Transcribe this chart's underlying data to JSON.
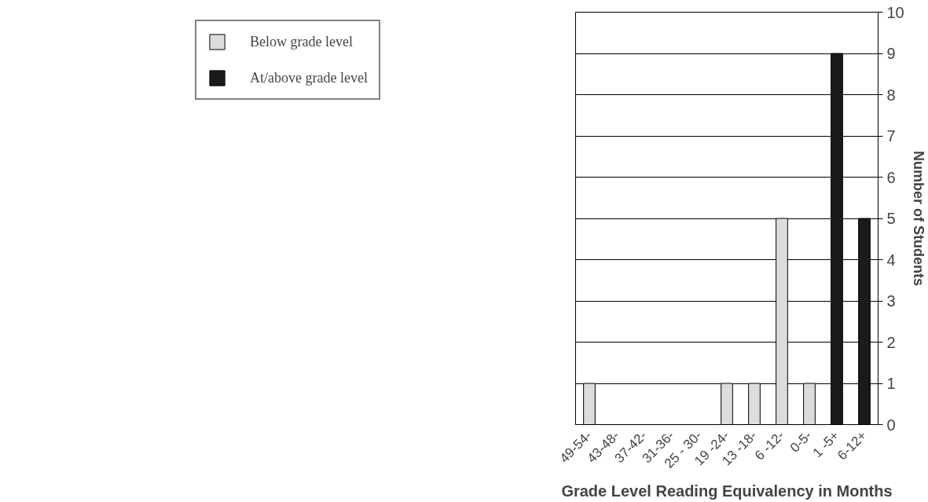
{
  "chart_data": {
    "type": "bar",
    "stacked": true,
    "xlabel": "Grade Level Reading Equivalency in Months",
    "ylabel": "Number of Students",
    "categories": [
      "49-54-",
      "43-48-",
      "37-42-",
      "31-36-",
      "25 - 30-",
      "19 -24-",
      "13 -18-",
      "6 -12-",
      "0-5-",
      "1 -5+",
      "6-12+"
    ],
    "series": [
      {
        "name": "Below grade level",
        "color": "#dcdcdc",
        "values": [
          1,
          0,
          0,
          0,
          0,
          1,
          1,
          5,
          1,
          0,
          0
        ]
      },
      {
        "name": "At/above grade level",
        "color": "#1a1a1a",
        "values": [
          0,
          0,
          0,
          0,
          0,
          0,
          0,
          0,
          0,
          9,
          5
        ]
      }
    ],
    "ylim": [
      0,
      10
    ],
    "yticks": [
      0,
      1,
      2,
      3,
      4,
      5,
      6,
      7,
      8,
      9,
      10
    ],
    "grid": "y",
    "legend": "left"
  }
}
